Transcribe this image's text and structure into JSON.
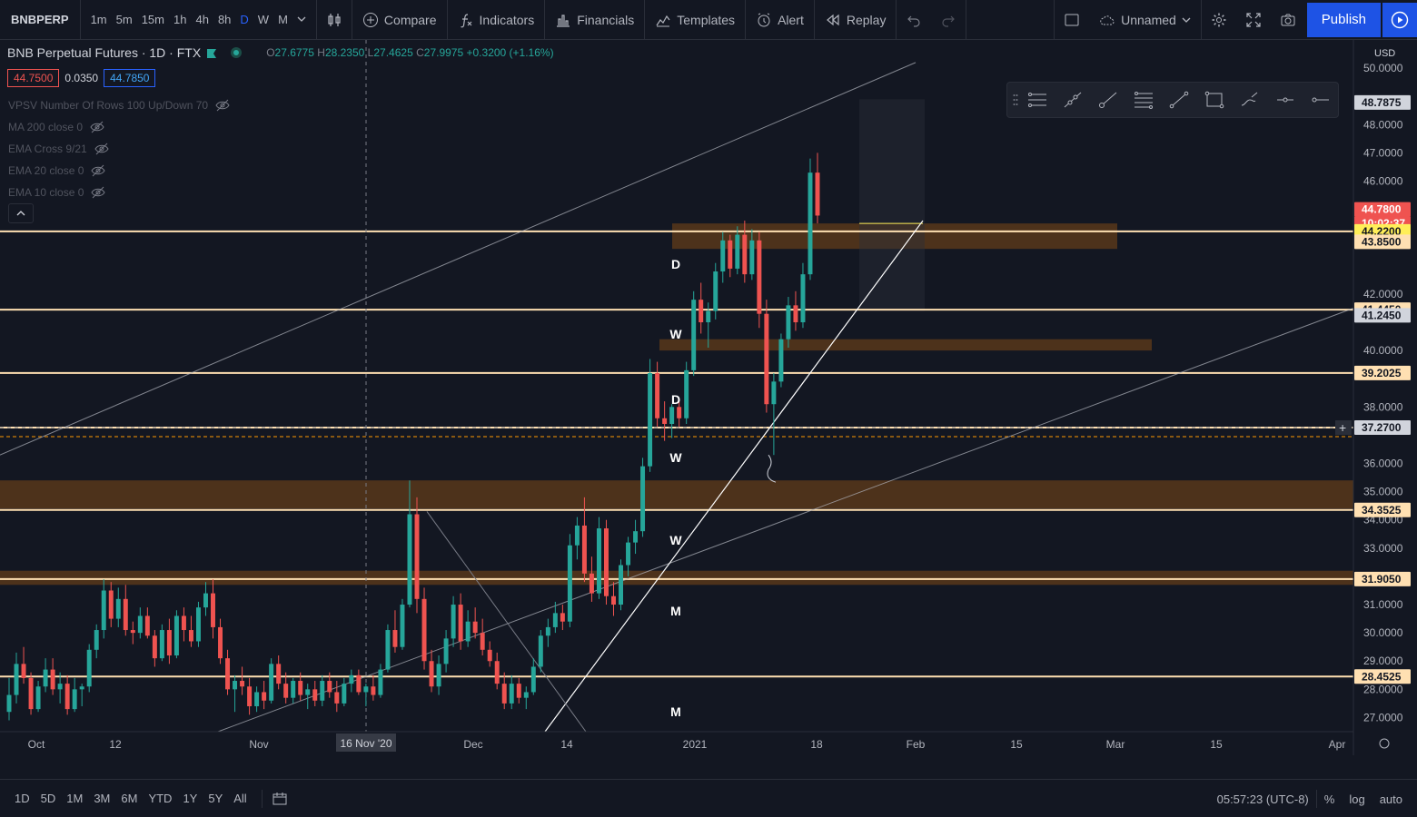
{
  "toolbar": {
    "symbol": "BNBPERP",
    "timeframes": [
      "1m",
      "5m",
      "15m",
      "1h",
      "4h",
      "8h",
      "D",
      "W",
      "M"
    ],
    "active_timeframe": "D",
    "compare": "Compare",
    "indicators": "Indicators",
    "financials": "Financials",
    "templates": "Templates",
    "alert": "Alert",
    "replay": "Replay",
    "layout_name": "Unnamed",
    "publish": "Publish"
  },
  "legend": {
    "title": "BNB Perpetual Futures · 1D · FTX",
    "o_label": "O",
    "o": "27.6775",
    "h_label": "H",
    "h": "28.2350",
    "l_label": "L",
    "l": "27.4625",
    "c_label": "C",
    "c": "27.9975",
    "change": "+0.3200 (+1.16%)",
    "bid": "44.7500",
    "spread": "0.0350",
    "ask": "44.7850"
  },
  "indicators": [
    "VPSV Number Of Rows 100 Up/Down 70",
    "MA 200 close 0",
    "EMA Cross 9/21",
    "EMA 20 close 0",
    "EMA 10 close 0"
  ],
  "price_axis": {
    "currency": "USD",
    "ticks": [
      "50.0000",
      "48.0000",
      "47.0000",
      "46.0000",
      "42.0000",
      "40.0000",
      "38.0000",
      "36.0000",
      "35.0000",
      "34.0000",
      "33.0000",
      "31.0000",
      "30.0000",
      "29.0000",
      "28.0000",
      "27.0000"
    ],
    "labels": [
      {
        "text": "48.7875",
        "bg": "#d1d4dc",
        "fg": "#131722"
      },
      {
        "text": "44.7800",
        "bg": "#ef5350",
        "fg": "#ffffff"
      },
      {
        "text": "10:02:37",
        "bg": "#ef5350",
        "fg": "#ffffff"
      },
      {
        "text": "44.2200",
        "bg": "#ffee58",
        "fg": "#131722"
      },
      {
        "text": "43.8500",
        "bg": "#ffe0b2",
        "fg": "#131722"
      },
      {
        "text": "41.4450",
        "bg": "#ffe0b2",
        "fg": "#131722"
      },
      {
        "text": "41.2450",
        "bg": "#d1d4dc",
        "fg": "#131722"
      },
      {
        "text": "39.2025",
        "bg": "#ffe0b2",
        "fg": "#131722"
      },
      {
        "text": "37.2700",
        "bg": "#d1d4dc",
        "fg": "#131722"
      },
      {
        "text": "34.3525",
        "bg": "#ffe0b2",
        "fg": "#131722"
      },
      {
        "text": "31.9050",
        "bg": "#ffe0b2",
        "fg": "#131722"
      },
      {
        "text": "28.4525",
        "bg": "#ffe0b2",
        "fg": "#131722"
      }
    ]
  },
  "time_axis": {
    "ticks": [
      "Oct",
      "12",
      "Nov",
      "Dec",
      "14",
      "2021",
      "18",
      "Feb",
      "15",
      "Mar",
      "15",
      "Apr"
    ],
    "crosshair_label": "16 Nov '20"
  },
  "level_labels": [
    "D",
    "W",
    "D",
    "W",
    "W",
    "M",
    "M"
  ],
  "bottombar": {
    "ranges": [
      "1D",
      "5D",
      "1M",
      "3M",
      "6M",
      "YTD",
      "1Y",
      "5Y",
      "All"
    ],
    "clock": "05:57:23 (UTC-8)",
    "percent": "%",
    "log": "log",
    "auto": "auto"
  },
  "colors": {
    "bg": "#131722",
    "up": "#26a69a",
    "down": "#ef5350",
    "level": "#ffe0b2",
    "zone": "#5d3a1a",
    "accent": "#2962ff"
  },
  "chart_data": {
    "type": "candlestick",
    "symbol": "BNBPERP",
    "timeframe": "1D",
    "ylim": [
      26.5,
      51
    ],
    "horizontal_levels": [
      44.22,
      43.85,
      41.445,
      39.2025,
      37.27,
      34.3525,
      31.905,
      28.4525
    ],
    "zones": [
      [
        43.6,
        44.5
      ],
      [
        40.0,
        40.4
      ],
      [
        34.4,
        35.4
      ],
      [
        31.7,
        32.2
      ]
    ],
    "candles": [
      [
        27.2,
        28.4,
        26.9,
        27.8
      ],
      [
        27.8,
        29.3,
        27.5,
        28.9
      ],
      [
        28.9,
        29.5,
        28.2,
        28.4
      ],
      [
        28.4,
        28.6,
        27.1,
        27.3
      ],
      [
        27.3,
        28.3,
        27.2,
        28.1
      ],
      [
        28.1,
        29.1,
        27.9,
        28.7
      ],
      [
        28.7,
        29.1,
        27.8,
        28.0
      ],
      [
        28.0,
        28.6,
        27.5,
        28.2
      ],
      [
        28.2,
        28.5,
        27.1,
        27.3
      ],
      [
        27.3,
        28.4,
        27.2,
        28.0
      ],
      [
        28.0,
        28.2,
        27.4,
        28.1
      ],
      [
        28.1,
        29.6,
        27.9,
        29.4
      ],
      [
        29.4,
        30.3,
        29.1,
        30.1
      ],
      [
        30.1,
        31.9,
        29.8,
        31.5
      ],
      [
        31.5,
        31.8,
        30.2,
        30.5
      ],
      [
        30.5,
        31.6,
        30.2,
        31.2
      ],
      [
        31.2,
        31.7,
        29.9,
        30.1
      ],
      [
        30.1,
        30.4,
        29.6,
        30.0
      ],
      [
        30.0,
        30.9,
        29.8,
        30.6
      ],
      [
        30.6,
        30.9,
        29.8,
        29.9
      ],
      [
        29.9,
        30.1,
        28.8,
        29.1
      ],
      [
        29.1,
        30.3,
        29.0,
        30.1
      ],
      [
        30.1,
        30.5,
        28.9,
        29.2
      ],
      [
        29.2,
        30.8,
        29.1,
        30.6
      ],
      [
        30.6,
        30.9,
        29.7,
        30.1
      ],
      [
        30.1,
        30.6,
        29.5,
        29.7
      ],
      [
        29.7,
        31.1,
        29.5,
        30.9
      ],
      [
        30.9,
        31.8,
        30.6,
        31.4
      ],
      [
        31.4,
        31.9,
        29.8,
        30.2
      ],
      [
        30.2,
        30.5,
        28.9,
        29.1
      ],
      [
        29.1,
        29.4,
        27.8,
        28.0
      ],
      [
        28.0,
        28.5,
        27.2,
        28.3
      ],
      [
        28.3,
        28.8,
        27.8,
        28.1
      ],
      [
        28.1,
        28.4,
        27.1,
        27.4
      ],
      [
        27.4,
        28.1,
        27.2,
        27.9
      ],
      [
        27.9,
        28.3,
        27.3,
        27.6
      ],
      [
        27.6,
        29.1,
        27.5,
        28.9
      ],
      [
        28.9,
        29.2,
        28.0,
        28.2
      ],
      [
        28.2,
        28.6,
        27.5,
        27.7
      ],
      [
        27.7,
        28.4,
        27.5,
        28.3
      ],
      [
        28.3,
        28.6,
        27.6,
        27.8
      ],
      [
        27.8,
        28.2,
        27.3,
        28.0
      ],
      [
        28.0,
        28.3,
        27.4,
        27.6
      ],
      [
        27.6,
        28.5,
        27.4,
        28.3
      ],
      [
        28.3,
        28.6,
        27.7,
        27.9
      ],
      [
        27.9,
        28.3,
        27.2,
        27.5
      ],
      [
        27.5,
        28.4,
        27.4,
        28.2
      ],
      [
        28.2,
        28.7,
        27.9,
        28.5
      ],
      [
        28.5,
        28.7,
        27.8,
        27.9
      ],
      [
        27.9,
        28.2,
        27.4,
        28.1
      ],
      [
        28.1,
        28.5,
        27.6,
        27.8
      ],
      [
        27.8,
        28.9,
        27.7,
        28.7
      ],
      [
        28.7,
        30.3,
        28.6,
        30.1
      ],
      [
        30.1,
        30.8,
        29.3,
        29.5
      ],
      [
        29.5,
        31.2,
        29.4,
        31.0
      ],
      [
        31.0,
        35.4,
        30.9,
        34.2
      ],
      [
        34.2,
        34.8,
        30.7,
        31.2
      ],
      [
        31.2,
        31.6,
        28.7,
        29.0
      ],
      [
        29.0,
        29.4,
        27.9,
        28.1
      ],
      [
        28.1,
        29.2,
        27.8,
        28.9
      ],
      [
        28.9,
        30.1,
        28.6,
        29.8
      ],
      [
        29.8,
        31.3,
        29.5,
        31.0
      ],
      [
        31.0,
        31.4,
        29.4,
        29.7
      ],
      [
        29.7,
        30.8,
        29.5,
        30.4
      ],
      [
        30.4,
        30.9,
        29.8,
        30.0
      ],
      [
        30.0,
        30.5,
        29.2,
        29.4
      ],
      [
        29.4,
        29.7,
        28.8,
        29.0
      ],
      [
        29.0,
        29.3,
        28.0,
        28.2
      ],
      [
        28.2,
        28.6,
        27.3,
        27.5
      ],
      [
        27.5,
        28.5,
        27.3,
        28.2
      ],
      [
        28.2,
        28.4,
        27.5,
        27.7
      ],
      [
        27.7,
        28.1,
        27.3,
        27.9
      ],
      [
        27.9,
        29.1,
        27.8,
        28.8
      ],
      [
        28.8,
        30.1,
        28.6,
        29.9
      ],
      [
        29.9,
        30.5,
        29.5,
        30.2
      ],
      [
        30.2,
        31.1,
        30.0,
        30.7
      ],
      [
        30.7,
        31.0,
        30.1,
        30.4
      ],
      [
        30.4,
        33.5,
        30.2,
        33.1
      ],
      [
        33.1,
        34.1,
        32.6,
        33.8
      ],
      [
        33.8,
        34.8,
        31.8,
        32.1
      ],
      [
        32.1,
        32.7,
        31.1,
        31.4
      ],
      [
        31.4,
        34.1,
        31.2,
        33.7
      ],
      [
        33.7,
        34.0,
        31.0,
        31.3
      ],
      [
        31.3,
        31.8,
        30.6,
        31.0
      ],
      [
        31.0,
        32.6,
        30.8,
        32.4
      ],
      [
        32.4,
        33.4,
        32.0,
        33.2
      ],
      [
        33.2,
        34.0,
        32.8,
        33.6
      ],
      [
        33.6,
        36.2,
        33.4,
        35.9
      ],
      [
        35.9,
        39.7,
        35.7,
        39.2
      ],
      [
        39.2,
        39.6,
        37.3,
        37.6
      ],
      [
        37.6,
        38.2,
        36.8,
        37.4
      ],
      [
        37.4,
        38.1,
        36.9,
        38.0
      ],
      [
        38.0,
        38.3,
        37.3,
        37.6
      ],
      [
        37.6,
        39.6,
        37.4,
        39.3
      ],
      [
        39.3,
        42.1,
        39.1,
        41.8
      ],
      [
        41.8,
        42.4,
        40.6,
        41.0
      ],
      [
        41.0,
        41.7,
        40.1,
        41.4
      ],
      [
        41.4,
        43.1,
        41.1,
        42.8
      ],
      [
        42.8,
        44.2,
        42.4,
        43.9
      ],
      [
        43.9,
        44.1,
        42.6,
        42.9
      ],
      [
        42.9,
        44.4,
        42.7,
        44.1
      ],
      [
        44.1,
        44.6,
        42.4,
        42.7
      ],
      [
        42.7,
        44.3,
        42.5,
        43.9
      ],
      [
        43.9,
        44.2,
        40.8,
        41.3
      ],
      [
        41.3,
        41.8,
        37.8,
        38.1
      ],
      [
        38.1,
        39.2,
        36.3,
        38.9
      ],
      [
        38.9,
        40.6,
        38.7,
        40.4
      ],
      [
        40.4,
        41.9,
        40.1,
        41.6
      ],
      [
        41.6,
        42.1,
        40.7,
        41.0
      ],
      [
        41.0,
        43.1,
        40.8,
        42.7
      ],
      [
        42.7,
        46.8,
        42.5,
        46.3
      ],
      [
        46.3,
        47.0,
        44.5,
        44.78
      ]
    ]
  }
}
